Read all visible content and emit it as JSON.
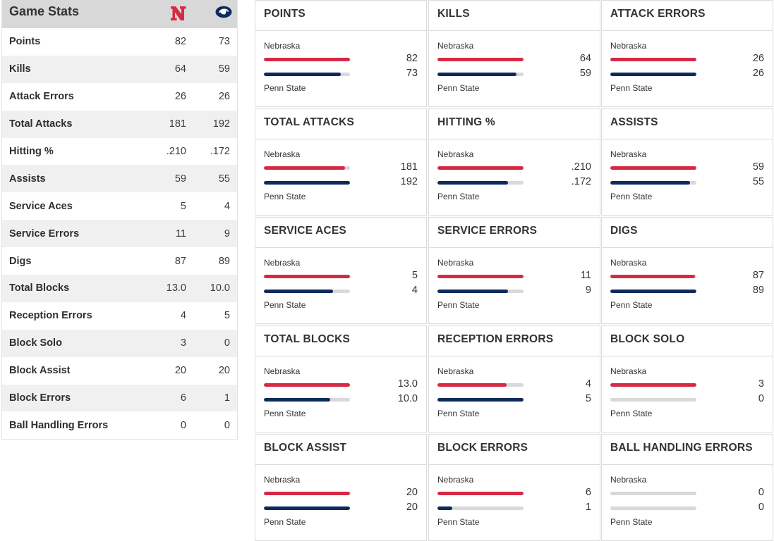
{
  "table": {
    "title": "Game Stats",
    "home_logo_icon": "nebraska-n-logo-icon",
    "away_logo_icon": "penn-state-lion-logo-icon",
    "rows": [
      {
        "label": "Points",
        "home": "82",
        "away": "73"
      },
      {
        "label": "Kills",
        "home": "64",
        "away": "59"
      },
      {
        "label": "Attack Errors",
        "home": "26",
        "away": "26"
      },
      {
        "label": "Total Attacks",
        "home": "181",
        "away": "192"
      },
      {
        "label": "Hitting %",
        "home": ".210",
        "away": ".172"
      },
      {
        "label": "Assists",
        "home": "59",
        "away": "55"
      },
      {
        "label": "Service Aces",
        "home": "5",
        "away": "4"
      },
      {
        "label": "Service Errors",
        "home": "11",
        "away": "9"
      },
      {
        "label": "Digs",
        "home": "87",
        "away": "89"
      },
      {
        "label": "Total Blocks",
        "home": "13.0",
        "away": "10.0"
      },
      {
        "label": "Reception Errors",
        "home": "4",
        "away": "5"
      },
      {
        "label": "Block Solo",
        "home": "3",
        "away": "0"
      },
      {
        "label": "Block Assist",
        "home": "20",
        "away": "20"
      },
      {
        "label": "Block Errors",
        "home": "6",
        "away": "1"
      },
      {
        "label": "Ball Handling Errors",
        "home": "0",
        "away": "0"
      }
    ]
  },
  "colors": {
    "home": "#d62a44",
    "away": "#0c2b5c",
    "track": "#d9d9d9"
  },
  "cards": [
    {
      "title": "POINTS",
      "home_team": "Nebraska",
      "away_team": "Penn State",
      "home_value": "82",
      "away_value": "73",
      "home_fill": 1.0,
      "away_fill": 0.89
    },
    {
      "title": "KILLS",
      "home_team": "Nebraska",
      "away_team": "Penn State",
      "home_value": "64",
      "away_value": "59",
      "home_fill": 1.0,
      "away_fill": 0.92
    },
    {
      "title": "ATTACK ERRORS",
      "home_team": "Nebraska",
      "away_team": "Penn State",
      "home_value": "26",
      "away_value": "26",
      "home_fill": 1.0,
      "away_fill": 1.0
    },
    {
      "title": "TOTAL ATTACKS",
      "home_team": "Nebraska",
      "away_team": "Penn State",
      "home_value": "181",
      "away_value": "192",
      "home_fill": 0.94,
      "away_fill": 1.0
    },
    {
      "title": "HITTING %",
      "home_team": "Nebraska",
      "away_team": "Penn State",
      "home_value": ".210",
      "away_value": ".172",
      "home_fill": 1.0,
      "away_fill": 0.82
    },
    {
      "title": "ASSISTS",
      "home_team": "Nebraska",
      "away_team": "Penn State",
      "home_value": "59",
      "away_value": "55",
      "home_fill": 1.0,
      "away_fill": 0.93
    },
    {
      "title": "SERVICE ACES",
      "home_team": "Nebraska",
      "away_team": "Penn State",
      "home_value": "5",
      "away_value": "4",
      "home_fill": 1.0,
      "away_fill": 0.8
    },
    {
      "title": "SERVICE ERRORS",
      "home_team": "Nebraska",
      "away_team": "Penn State",
      "home_value": "11",
      "away_value": "9",
      "home_fill": 1.0,
      "away_fill": 0.82
    },
    {
      "title": "DIGS",
      "home_team": "Nebraska",
      "away_team": "Penn State",
      "home_value": "87",
      "away_value": "89",
      "home_fill": 0.98,
      "away_fill": 1.0
    },
    {
      "title": "TOTAL BLOCKS",
      "home_team": "Nebraska",
      "away_team": "Penn State",
      "home_value": "13.0",
      "away_value": "10.0",
      "home_fill": 1.0,
      "away_fill": 0.77
    },
    {
      "title": "RECEPTION ERRORS",
      "home_team": "Nebraska",
      "away_team": "Penn State",
      "home_value": "4",
      "away_value": "5",
      "home_fill": 0.8,
      "away_fill": 1.0
    },
    {
      "title": "BLOCK SOLO",
      "home_team": "Nebraska",
      "away_team": "Penn State",
      "home_value": "3",
      "away_value": "0",
      "home_fill": 1.0,
      "away_fill": 0.0
    },
    {
      "title": "BLOCK ASSIST",
      "home_team": "Nebraska",
      "away_team": "Penn State",
      "home_value": "20",
      "away_value": "20",
      "home_fill": 1.0,
      "away_fill": 1.0
    },
    {
      "title": "BLOCK ERRORS",
      "home_team": "Nebraska",
      "away_team": "Penn State",
      "home_value": "6",
      "away_value": "1",
      "home_fill": 1.0,
      "away_fill": 0.17
    },
    {
      "title": "BALL HANDLING ERRORS",
      "home_team": "Nebraska",
      "away_team": "Penn State",
      "home_value": "0",
      "away_value": "0",
      "home_fill": 0.0,
      "away_fill": 0.0
    }
  ]
}
